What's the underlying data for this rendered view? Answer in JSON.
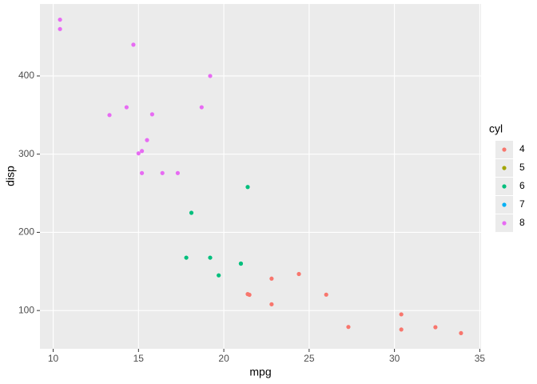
{
  "chart_data": {
    "type": "scatter",
    "x_label": "mpg",
    "y_label": "disp",
    "legend_title": "cyl",
    "legend_position": "right",
    "grid": true,
    "xlim": [
      9.225,
      35.075
    ],
    "ylim": [
      51.05,
      492.05
    ],
    "xticks": [
      10,
      15,
      20,
      25,
      30,
      35
    ],
    "yticks": [
      100,
      200,
      300,
      400
    ],
    "series": [
      {
        "name": "4",
        "color": "#F8766D",
        "x": [
          22.8,
          24.4,
          22.8,
          32.4,
          30.4,
          33.9,
          21.5,
          27.3,
          26,
          30.4,
          21.4
        ],
        "values": [
          108,
          146.7,
          140.8,
          78.7,
          75.7,
          71.1,
          120.1,
          79,
          120.3,
          95.1,
          121
        ]
      },
      {
        "name": "5",
        "color": "#A3A500",
        "x": [],
        "values": []
      },
      {
        "name": "6",
        "color": "#00BF7D",
        "x": [
          21,
          21,
          21.4,
          18.1,
          19.2,
          17.8,
          19.7
        ],
        "values": [
          160,
          160,
          258,
          225,
          167.6,
          167.6,
          145
        ]
      },
      {
        "name": "7",
        "color": "#00B0F6",
        "x": [],
        "values": []
      },
      {
        "name": "8",
        "color": "#E76BF3",
        "x": [
          18.7,
          14.3,
          16.4,
          17.3,
          15.2,
          10.4,
          10.4,
          14.7,
          15.5,
          15.2,
          13.3,
          19.2,
          15.8,
          15
        ],
        "values": [
          360,
          360,
          275.8,
          275.8,
          275.8,
          472,
          460,
          440,
          318,
          304,
          350,
          400,
          351,
          301
        ]
      }
    ]
  }
}
